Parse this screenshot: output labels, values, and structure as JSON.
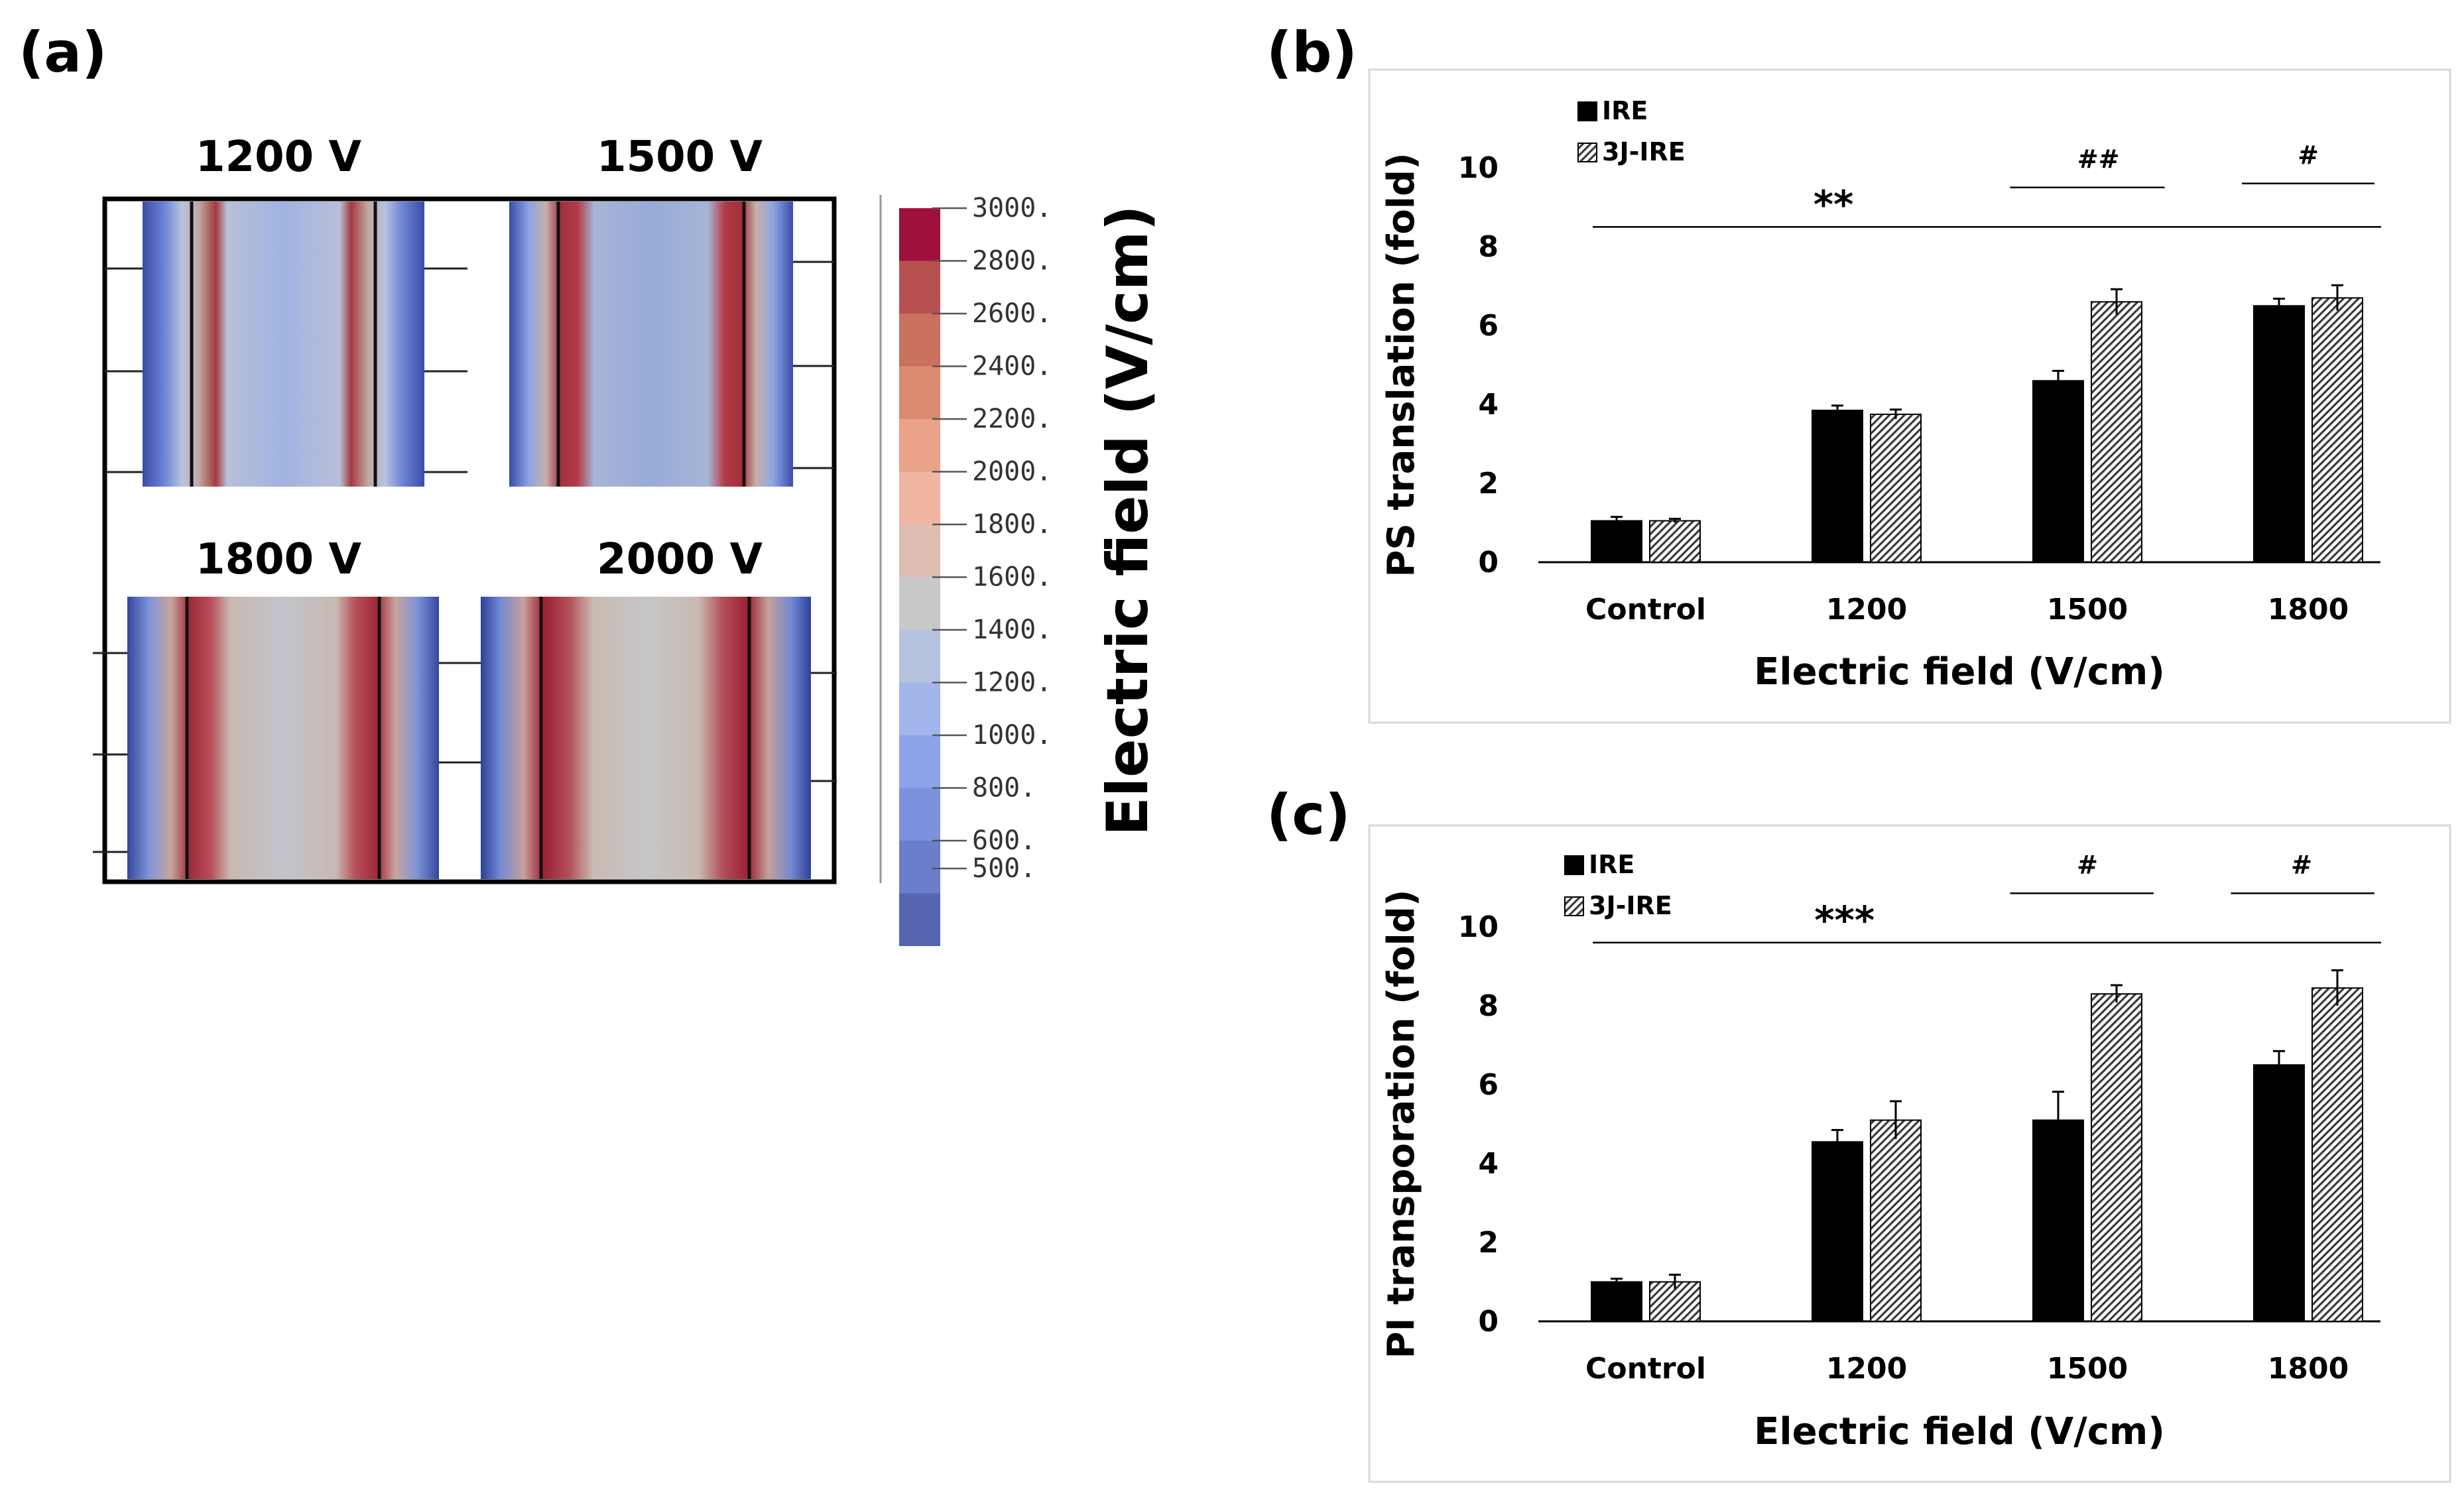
{
  "panel_a": {
    "letter": "(a)",
    "voltages": [
      "1200 V",
      "1500 V",
      "1800 V",
      "2000 V"
    ],
    "colorbar": {
      "label": "Electric field  (V/cm)",
      "ticks": [
        "3000.",
        "2800.",
        "2600.",
        "2400.",
        "2200.",
        "2000.",
        "1800.",
        "1600.",
        "1400.",
        "1200.",
        "1000.",
        "800.",
        "600.",
        "500."
      ],
      "colors": [
        "#a0103c",
        "#b65150",
        "#c9705f",
        "#dc8a72",
        "#eaa28b",
        "#f0b6a2",
        "#dfbdb1",
        "#c8c8c8",
        "#b6c3df",
        "#a3b6ec",
        "#8ea4ea",
        "#7b92de",
        "#6b7ecc",
        "#5565b0"
      ]
    }
  },
  "chart_data": [
    {
      "type": "bar",
      "panel": "(b)",
      "categories": [
        "Control",
        "1200",
        "1500",
        "1800"
      ],
      "series": [
        {
          "name": "IRE",
          "values": [
            1.05,
            3.85,
            4.6,
            6.5
          ],
          "errors": [
            0.1,
            0.12,
            0.25,
            0.18
          ]
        },
        {
          "name": "3J-IRE",
          "values": [
            1.05,
            3.75,
            6.6,
            6.7
          ],
          "errors": [
            0.05,
            0.12,
            0.32,
            0.32
          ]
        }
      ],
      "xlabel": "Electric field (V/cm)",
      "ylabel": "PS translation (fold)",
      "ylim": [
        0,
        10
      ],
      "yticks": [
        0,
        2,
        4,
        6,
        8,
        10
      ],
      "annotations": [
        {
          "text": "**",
          "y": 8.5,
          "from": 0,
          "to": 3,
          "label_category": 0.85
        },
        {
          "text": "##",
          "y": 9.5,
          "from": 1.65,
          "to": 2.35,
          "label_category": 2.05
        },
        {
          "text": "#",
          "y": 9.6,
          "from": 2.7,
          "to": 3.3,
          "label_category": 3.0
        }
      ]
    },
    {
      "type": "bar",
      "panel": "(c)",
      "categories": [
        "Control",
        "1200",
        "1500",
        "1800"
      ],
      "series": [
        {
          "name": "IRE",
          "values": [
            1.0,
            4.55,
            5.1,
            6.5
          ],
          "errors": [
            0.08,
            0.3,
            0.72,
            0.35
          ]
        },
        {
          "name": "3J-IRE",
          "values": [
            1.0,
            5.1,
            8.3,
            8.45
          ],
          "errors": [
            0.18,
            0.48,
            0.22,
            0.45
          ]
        }
      ],
      "xlabel": "Electric field (V/cm)",
      "ylabel": "PI transporation (fold)",
      "ylim": [
        0,
        10
      ],
      "yticks": [
        0,
        2,
        4,
        6,
        8,
        10
      ],
      "annotations": [
        {
          "text": "***",
          "y": 9.6,
          "from": 0,
          "to": 3,
          "label_category": 0.9
        },
        {
          "text": "#",
          "y": 10.85,
          "from": 1.65,
          "to": 2.3,
          "label_category": 2.0
        },
        {
          "text": "#",
          "y": 10.85,
          "from": 2.65,
          "to": 3.3,
          "label_category": 2.97
        }
      ]
    }
  ]
}
